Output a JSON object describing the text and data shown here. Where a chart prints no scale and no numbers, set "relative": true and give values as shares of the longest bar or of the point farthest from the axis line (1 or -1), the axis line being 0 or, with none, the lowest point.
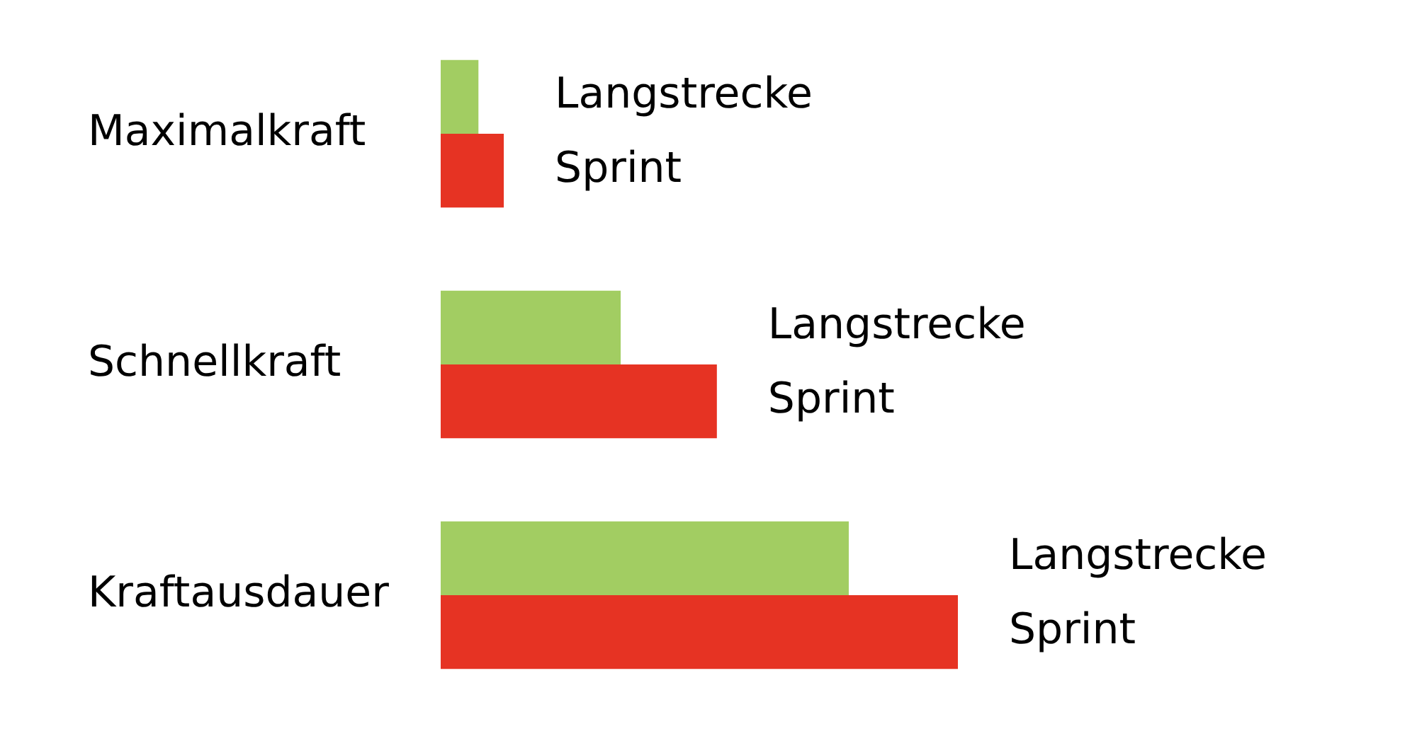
{
  "chart_data": {
    "type": "bar",
    "orientation": "horizontal",
    "relative": true,
    "categories": [
      "Maximalkraft",
      "Schnellkraft",
      "Kraftausdauer"
    ],
    "series": [
      {
        "name": "Langstrecke",
        "color": "#a2cd62",
        "values": [
          0.073,
          0.348,
          0.789
        ]
      },
      {
        "name": "Sprint",
        "color": "#e63323",
        "values": [
          0.122,
          0.534,
          1
        ]
      }
    ]
  }
}
